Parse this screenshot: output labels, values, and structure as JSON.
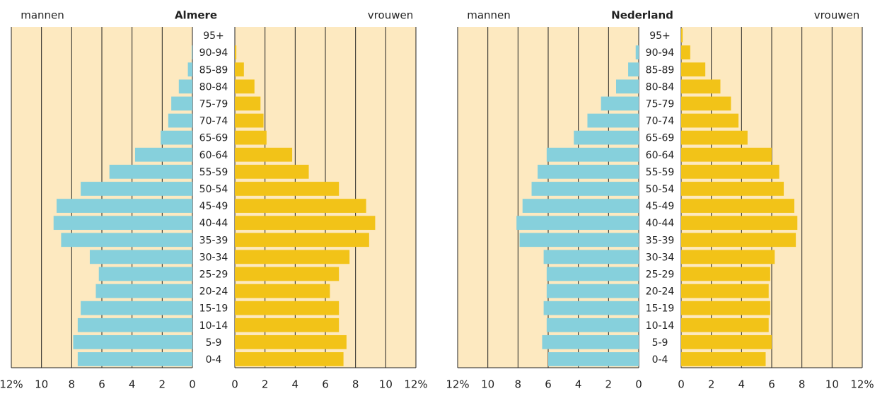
{
  "chart_data": [
    {
      "type": "pyramid",
      "title": "Almere",
      "categories": [
        "0-4",
        "5-9",
        "10-14",
        "15-19",
        "20-24",
        "25-29",
        "30-34",
        "35-39",
        "40-44",
        "45-49",
        "50-54",
        "55-59",
        "60-64",
        "65-69",
        "70-74",
        "75-79",
        "80-84",
        "85-89",
        "90-94",
        "95+"
      ],
      "series": [
        {
          "name": "mannen",
          "color": "#86d0dc",
          "values": [
            7.6,
            7.9,
            7.6,
            7.4,
            6.4,
            6.2,
            6.8,
            8.7,
            9.2,
            9.0,
            7.4,
            5.5,
            3.8,
            2.1,
            1.6,
            1.4,
            0.9,
            0.3,
            0.05,
            0
          ]
        },
        {
          "name": "vrouwen",
          "color": "#f2c318",
          "values": [
            7.2,
            7.4,
            6.9,
            6.9,
            6.3,
            6.9,
            7.6,
            8.9,
            9.3,
            8.7,
            6.9,
            4.9,
            3.8,
            2.1,
            1.9,
            1.7,
            1.3,
            0.6,
            0.1,
            0
          ]
        }
      ],
      "xlim": [
        0,
        12
      ],
      "xticks": [
        0,
        2,
        4,
        6,
        8,
        10,
        {
          "value": 12,
          "label": "12%"
        }
      ],
      "grid": true
    },
    {
      "type": "pyramid",
      "title": "Nederland",
      "categories": [
        "0-4",
        "5-9",
        "10-14",
        "15-19",
        "20-24",
        "25-29",
        "30-34",
        "35-39",
        "40-44",
        "45-49",
        "50-54",
        "55-59",
        "60-64",
        "65-69",
        "70-74",
        "75-79",
        "80-84",
        "85-89",
        "90-94",
        "95+"
      ],
      "series": [
        {
          "name": "mannen",
          "color": "#86d0dc",
          "values": [
            6.0,
            6.4,
            6.1,
            6.3,
            6.1,
            6.1,
            6.3,
            7.9,
            8.1,
            7.7,
            7.1,
            6.7,
            6.1,
            4.3,
            3.4,
            2.5,
            1.5,
            0.7,
            0.2,
            0
          ]
        },
        {
          "name": "vrouwen",
          "color": "#f2c318",
          "values": [
            5.6,
            6.0,
            5.8,
            5.9,
            5.8,
            5.9,
            6.2,
            7.6,
            7.7,
            7.5,
            6.8,
            6.5,
            6.0,
            4.4,
            3.8,
            3.3,
            2.6,
            1.6,
            0.6,
            0.1
          ]
        }
      ],
      "xlim": [
        0,
        12
      ],
      "xticks": [
        0,
        2,
        4,
        6,
        8,
        10,
        {
          "value": 12,
          "label": "12%"
        }
      ],
      "grid": true
    }
  ]
}
